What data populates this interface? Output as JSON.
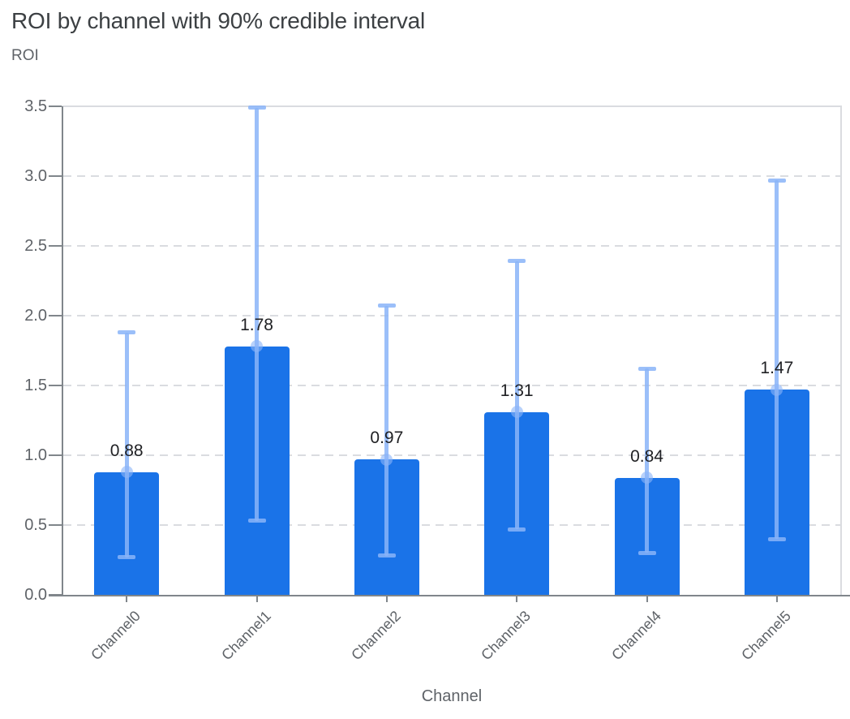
{
  "title": "ROI by channel with 90% credible interval",
  "colors": {
    "bar": "#1a73e8",
    "error_bar": "rgba(138,180,248,0.85)",
    "marker": "rgba(138,180,248,0.60)",
    "title_text": "#3c4043",
    "axis_text": "#5f6368",
    "label_text": "#202124",
    "gridline": "#dadce0",
    "axis_line": "#80868b"
  },
  "chart_data": {
    "type": "bar",
    "title": "ROI by channel with 90% credible interval",
    "xlabel": "Channel",
    "ylabel": "ROI",
    "categories": [
      "Channel0",
      "Channel1",
      "Channel2",
      "Channel3",
      "Channel4",
      "Channel5"
    ],
    "values": [
      0.88,
      1.78,
      0.97,
      1.31,
      0.84,
      1.47
    ],
    "value_labels": [
      "0.88",
      "1.78",
      "0.97",
      "1.31",
      "0.84",
      "1.47"
    ],
    "ci_low": [
      0.27,
      0.53,
      0.28,
      0.47,
      0.3,
      0.4
    ],
    "ci_high": [
      1.88,
      3.49,
      2.07,
      2.39,
      1.62,
      2.97
    ],
    "ci_level": "90%",
    "ylim": [
      0,
      3.5
    ],
    "yticks": [
      0.0,
      0.5,
      1.0,
      1.5,
      2.0,
      2.5,
      3.0,
      3.5
    ],
    "ytick_labels": [
      "0.0",
      "0.5",
      "1.0",
      "1.5",
      "2.0",
      "2.5",
      "3.0",
      "3.5"
    ],
    "grid": "horizontal-dashed",
    "legend": "none",
    "bar_label_position": "above-bar"
  }
}
